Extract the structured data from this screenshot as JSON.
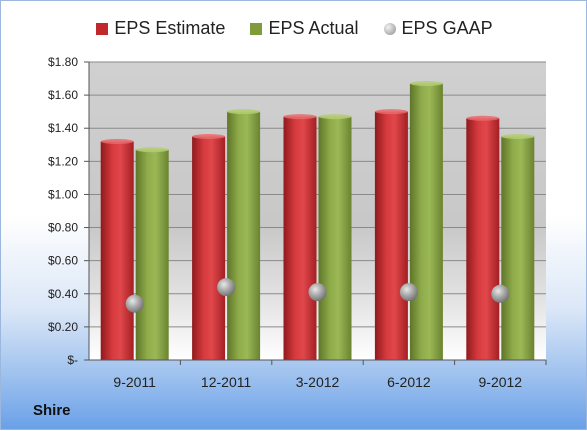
{
  "legend": [
    {
      "name": "EPS Estimate",
      "color": "#c0282c"
    },
    {
      "name": "EPS Actual",
      "color": "#7f9b3c"
    },
    {
      "name": "EPS GAAP",
      "color": "#a6a6a6"
    }
  ],
  "company": "Shire",
  "chart_data": {
    "type": "bar",
    "categories": [
      "9-2011",
      "12-2011",
      "3-2012",
      "6-2012",
      "9-2012"
    ],
    "series": [
      {
        "name": "EPS Estimate",
        "values": [
          1.32,
          1.35,
          1.47,
          1.5,
          1.46
        ]
      },
      {
        "name": "EPS Actual",
        "values": [
          1.27,
          1.5,
          1.47,
          1.67,
          1.35
        ]
      },
      {
        "name": "EPS GAAP",
        "values": [
          0.34,
          0.44,
          0.41,
          0.41,
          0.4
        ]
      }
    ],
    "ylim": [
      0,
      1.8
    ],
    "yticks": [
      {
        "value": 0,
        "label": "$-"
      },
      {
        "value": 0.2,
        "label": "$0.20"
      },
      {
        "value": 0.4,
        "label": "$0.40"
      },
      {
        "value": 0.6,
        "label": "$0.60"
      },
      {
        "value": 0.8,
        "label": "$0.80"
      },
      {
        "value": 1.0,
        "label": "$1.00"
      },
      {
        "value": 1.2,
        "label": "$1.20"
      },
      {
        "value": 1.4,
        "label": "$1.40"
      },
      {
        "value": 1.6,
        "label": "$1.60"
      },
      {
        "value": 1.8,
        "label": "$1.80"
      }
    ],
    "grid": true,
    "legend_position": "top"
  }
}
